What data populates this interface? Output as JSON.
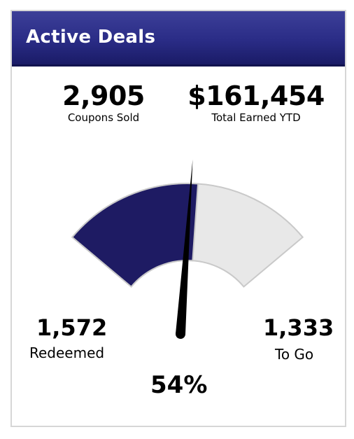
{
  "header": {
    "title": "Active Deals"
  },
  "stats": {
    "coupons_sold": {
      "value": "2,905",
      "label": "Coupons Sold"
    },
    "total_earned": {
      "value": "$161,454",
      "label": "Total Earned YTD"
    }
  },
  "gauge": {
    "redeemed": {
      "value": "1,572",
      "label": "Redeemed"
    },
    "to_go": {
      "value": "1,333",
      "label": "To Go"
    },
    "percent_label": "54%",
    "fraction": 0.54,
    "colors": {
      "filled": "#1e1b63",
      "empty": "#e8e8e8",
      "needle": "#000000"
    }
  }
}
